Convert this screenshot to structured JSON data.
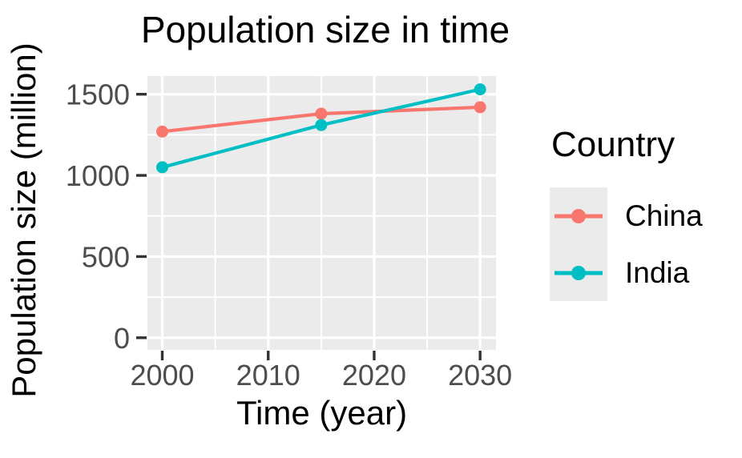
{
  "chart_data": {
    "type": "line",
    "title": "Population size in time",
    "xlabel": "Time (year)",
    "ylabel": "Population size (million)",
    "legend_title": "Country",
    "legend_position": "right",
    "x": [
      2000,
      2015,
      2030
    ],
    "series": [
      {
        "name": "China",
        "color": "#F8766D",
        "values": [
          1270,
          1380,
          1420
        ]
      },
      {
        "name": "India",
        "color": "#00BFC4",
        "values": [
          1050,
          1310,
          1530
        ]
      }
    ],
    "xlim": [
      1998.6,
      2031.5
    ],
    "ylim": [
      -75,
      1612
    ],
    "x_ticks": [
      2000,
      2010,
      2020,
      2030
    ],
    "x_minor_ticks": [
      2005,
      2015,
      2025
    ],
    "y_ticks": [
      0,
      500,
      1000,
      1500
    ],
    "y_minor_ticks": [
      250,
      750,
      1250
    ],
    "grid": true,
    "style": {
      "panel_bg": "#EBEBEB",
      "grid_color": "#FFFFFF",
      "tick_mark_color": "#333333",
      "tick_label_color": "#4D4D4D",
      "text_color": "#000000"
    }
  }
}
